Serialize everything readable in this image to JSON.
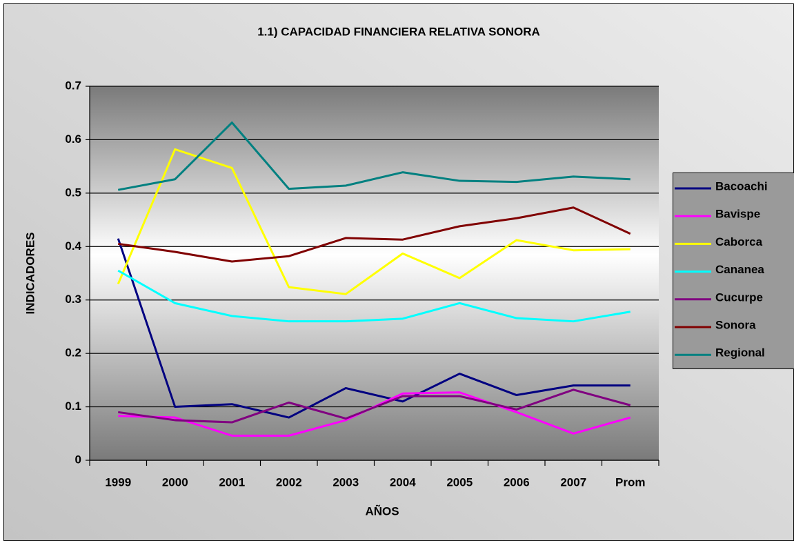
{
  "chart_data": {
    "type": "line",
    "title": "1.1) CAPACIDAD FINANCIERA RELATIVA SONORA",
    "xlabel": "AÑOS",
    "ylabel": "INDICADORES",
    "categories": [
      "1999",
      "2000",
      "2001",
      "2002",
      "2003",
      "2004",
      "2005",
      "2006",
      "2007",
      "Prom"
    ],
    "series": [
      {
        "name": "Bacoachi",
        "color": "#000080",
        "values": [
          0.415,
          0.1,
          0.105,
          0.08,
          0.135,
          0.11,
          0.162,
          0.122,
          0.14,
          0.14
        ]
      },
      {
        "name": "Bavispe",
        "color": "#ff00ff",
        "values": [
          0.083,
          0.08,
          0.046,
          0.046,
          0.075,
          0.125,
          0.127,
          0.09,
          0.05,
          0.08
        ]
      },
      {
        "name": "Caborca",
        "color": "#ffff00",
        "values": [
          0.33,
          0.582,
          0.547,
          0.324,
          0.311,
          0.387,
          0.341,
          0.412,
          0.393,
          0.395
        ]
      },
      {
        "name": "Cananea",
        "color": "#00ffff",
        "values": [
          0.355,
          0.294,
          0.27,
          0.26,
          0.26,
          0.265,
          0.294,
          0.266,
          0.26,
          0.278
        ]
      },
      {
        "name": "Cucurpe",
        "color": "#800080",
        "values": [
          0.09,
          0.075,
          0.071,
          0.108,
          0.078,
          0.12,
          0.12,
          0.095,
          0.132,
          0.103
        ]
      },
      {
        "name": "Sonora",
        "color": "#800000",
        "values": [
          0.405,
          0.39,
          0.372,
          0.382,
          0.416,
          0.413,
          0.438,
          0.453,
          0.473,
          0.424
        ]
      },
      {
        "name": "Regional",
        "color": "#008080",
        "values": [
          0.506,
          0.526,
          0.632,
          0.508,
          0.514,
          0.539,
          0.523,
          0.521,
          0.531,
          0.526
        ]
      }
    ],
    "ylim": [
      0,
      0.7
    ],
    "yticks": [
      0,
      0.1,
      0.2,
      0.3,
      0.4,
      0.5,
      0.6,
      0.7
    ],
    "grid": true,
    "legend": "right"
  }
}
